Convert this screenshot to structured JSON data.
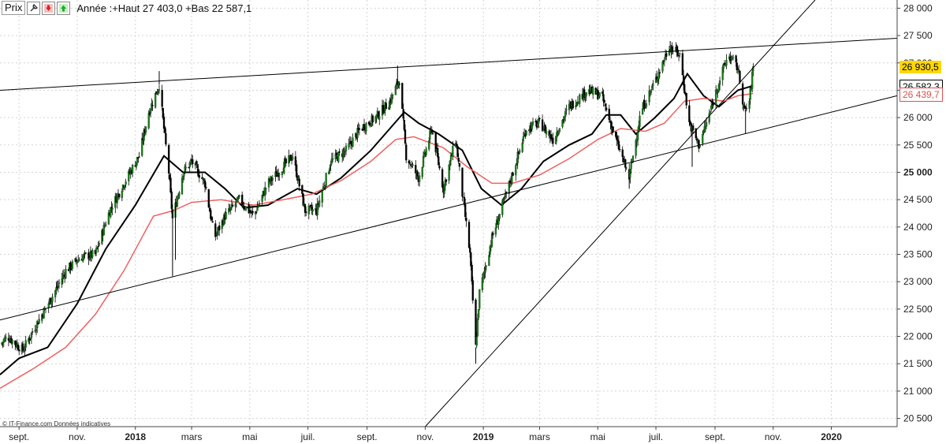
{
  "toolbar": {
    "prix_label": "Prix",
    "wrench_icon": "wrench-icon",
    "down_icon": "arrow-down-icon",
    "up_icon": "arrow-up-icon",
    "summary": "Année :+Haut 27 403,0 +Bas 22 587,1"
  },
  "credit": "© IT-Finance.com Données indicatives",
  "badges": {
    "price": {
      "label": "26 930,5",
      "value": 26930.5,
      "bg": "#ffd700"
    },
    "ma_black": {
      "label": "26 582,3",
      "value": 26582.3,
      "color": "#000000"
    },
    "ma_red": {
      "label": "26 439,7",
      "value": 26439.7,
      "color": "#e05050"
    }
  },
  "colors": {
    "up": "#1a7a1a",
    "down": "#000000",
    "ma_black": "#000000",
    "ma_red": "#f06060",
    "trend": "#000000",
    "grid": "#cccccc"
  },
  "chart_data": {
    "type": "candlestick",
    "ylim": [
      20350,
      28150
    ],
    "y_ticks": [
      {
        "v": 20500,
        "l": "20 500"
      },
      {
        "v": 21000,
        "l": "21 000"
      },
      {
        "v": 21500,
        "l": "21 500"
      },
      {
        "v": 22000,
        "l": "22 000"
      },
      {
        "v": 22500,
        "l": "22 500"
      },
      {
        "v": 23000,
        "l": "23 000"
      },
      {
        "v": 23500,
        "l": "23 500"
      },
      {
        "v": 24000,
        "l": "24 000"
      },
      {
        "v": 24500,
        "l": "24 500"
      },
      {
        "v": 25000,
        "l": "25 000",
        "bold": true
      },
      {
        "v": 25500,
        "l": "25 500"
      },
      {
        "v": 26000,
        "l": "26 000"
      },
      {
        "v": 26500,
        "l": "26 500"
      },
      {
        "v": 27000,
        "l": "27 000"
      },
      {
        "v": 27500,
        "l": "27 500"
      },
      {
        "v": 28000,
        "l": "28 000"
      }
    ],
    "x_range": [
      "2017-08-12",
      "2020-03-10"
    ],
    "x_ticks": [
      {
        "d": "2017-09-01",
        "l": "sept."
      },
      {
        "d": "2017-11-01",
        "l": "nov."
      },
      {
        "d": "2018-01-01",
        "l": "2018",
        "bold": true
      },
      {
        "d": "2018-03-01",
        "l": "mars"
      },
      {
        "d": "2018-05-01",
        "l": "mai"
      },
      {
        "d": "2018-07-01",
        "l": "juil."
      },
      {
        "d": "2018-09-01",
        "l": "sept."
      },
      {
        "d": "2018-11-01",
        "l": "nov."
      },
      {
        "d": "2019-01-01",
        "l": "2019",
        "bold": true
      },
      {
        "d": "2019-03-01",
        "l": "mars"
      },
      {
        "d": "2019-05-01",
        "l": "mai"
      },
      {
        "d": "2019-07-01",
        "l": "juil."
      },
      {
        "d": "2019-09-01",
        "l": "sept."
      },
      {
        "d": "2019-11-01",
        "l": "nov."
      },
      {
        "d": "2020-01-01",
        "l": "2020",
        "bold": true
      }
    ],
    "close_path": [
      [
        "2017-08-12",
        21850
      ],
      [
        "2017-08-20",
        22000
      ],
      [
        "2017-09-05",
        21750
      ],
      [
        "2017-09-20",
        22250
      ],
      [
        "2017-10-05",
        22700
      ],
      [
        "2017-10-20",
        23200
      ],
      [
        "2017-11-05",
        23450
      ],
      [
        "2017-11-20",
        23500
      ],
      [
        "2017-12-05",
        24300
      ],
      [
        "2017-12-20",
        24800
      ],
      [
        "2018-01-05",
        25300
      ],
      [
        "2018-01-15",
        26100
      ],
      [
        "2018-01-26",
        26600
      ],
      [
        "2018-02-05",
        25000
      ],
      [
        "2018-02-09",
        24150
      ],
      [
        "2018-02-20",
        25000
      ],
      [
        "2018-03-01",
        25200
      ],
      [
        "2018-03-15",
        24800
      ],
      [
        "2018-03-25",
        23800
      ],
      [
        "2018-04-05",
        24200
      ],
      [
        "2018-04-20",
        24500
      ],
      [
        "2018-05-05",
        24200
      ],
      [
        "2018-05-20",
        24800
      ],
      [
        "2018-06-05",
        25100
      ],
      [
        "2018-06-15",
        25300
      ],
      [
        "2018-06-28",
        24300
      ],
      [
        "2018-07-10",
        24300
      ],
      [
        "2018-07-25",
        25200
      ],
      [
        "2018-08-10",
        25400
      ],
      [
        "2018-08-25",
        25800
      ],
      [
        "2018-09-10",
        26000
      ],
      [
        "2018-09-25",
        26300
      ],
      [
        "2018-10-05",
        26700
      ],
      [
        "2018-10-12",
        25300
      ],
      [
        "2018-10-25",
        24900
      ],
      [
        "2018-11-08",
        25800
      ],
      [
        "2018-11-20",
        24700
      ],
      [
        "2018-12-03",
        25600
      ],
      [
        "2018-12-10",
        24600
      ],
      [
        "2018-12-18",
        23500
      ],
      [
        "2018-12-24",
        21800
      ],
      [
        "2018-12-28",
        22800
      ],
      [
        "2019-01-10",
        23800
      ],
      [
        "2019-01-25",
        24600
      ],
      [
        "2019-02-15",
        25800
      ],
      [
        "2019-03-01",
        25900
      ],
      [
        "2019-03-15",
        25600
      ],
      [
        "2019-04-01",
        26200
      ],
      [
        "2019-04-20",
        26500
      ],
      [
        "2019-05-05",
        26400
      ],
      [
        "2019-05-20",
        25600
      ],
      [
        "2019-06-03",
        24900
      ],
      [
        "2019-06-15",
        26100
      ],
      [
        "2019-07-01",
        26700
      ],
      [
        "2019-07-15",
        27300
      ],
      [
        "2019-07-26",
        27150
      ],
      [
        "2019-08-05",
        25900
      ],
      [
        "2019-08-15",
        25500
      ],
      [
        "2019-08-25",
        26000
      ],
      [
        "2019-09-05",
        26650
      ],
      [
        "2019-09-15",
        27150
      ],
      [
        "2019-09-25",
        26900
      ],
      [
        "2019-10-02",
        26100
      ],
      [
        "2019-10-07",
        26300
      ],
      [
        "2019-10-11",
        26930.5
      ]
    ],
    "spikes_low": [
      {
        "d": "2018-02-09",
        "v": 23100
      },
      {
        "d": "2018-02-12",
        "v": 23400
      },
      {
        "d": "2018-12-24",
        "v": 21500
      },
      {
        "d": "2019-06-03",
        "v": 24700
      },
      {
        "d": "2019-08-08",
        "v": 25100
      },
      {
        "d": "2019-10-03",
        "v": 25700
      }
    ],
    "spikes_high": [
      {
        "d": "2018-01-26",
        "v": 26850
      },
      {
        "d": "2018-10-03",
        "v": 26950
      },
      {
        "d": "2019-07-16",
        "v": 27400
      }
    ],
    "trendlines": [
      {
        "name": "upper",
        "p1": [
          "2017-08-12",
          26500
        ],
        "p2": [
          "2020-03-10",
          27450
        ]
      },
      {
        "name": "lower",
        "p1": [
          "2017-08-12",
          22300
        ],
        "p2": [
          "2020-03-10",
          26400
        ]
      },
      {
        "name": "steep",
        "p1": [
          "2018-11-01",
          20350
        ],
        "p2": [
          "2019-12-15",
          28150
        ]
      }
    ],
    "moving_averages": [
      {
        "name": "MA-black",
        "color": "#000000",
        "path": [
          [
            "2017-08-12",
            21300
          ],
          [
            "2017-09-01",
            21600
          ],
          [
            "2017-10-01",
            21800
          ],
          [
            "2017-11-01",
            22600
          ],
          [
            "2017-12-01",
            23600
          ],
          [
            "2018-01-01",
            24400
          ],
          [
            "2018-01-31",
            25300
          ],
          [
            "2018-02-20",
            25000
          ],
          [
            "2018-03-15",
            25000
          ],
          [
            "2018-04-05",
            24700
          ],
          [
            "2018-04-25",
            24350
          ],
          [
            "2018-05-20",
            24400
          ],
          [
            "2018-06-20",
            24700
          ],
          [
            "2018-07-10",
            24600
          ],
          [
            "2018-08-05",
            24900
          ],
          [
            "2018-09-05",
            25400
          ],
          [
            "2018-09-25",
            25800
          ],
          [
            "2018-10-10",
            26100
          ],
          [
            "2018-10-25",
            25900
          ],
          [
            "2018-11-15",
            25700
          ],
          [
            "2018-12-10",
            25400
          ],
          [
            "2018-12-30",
            24700
          ],
          [
            "2019-01-20",
            24400
          ],
          [
            "2019-02-10",
            24700
          ],
          [
            "2019-03-05",
            25200
          ],
          [
            "2019-04-01",
            25500
          ],
          [
            "2019-04-25",
            25700
          ],
          [
            "2019-05-10",
            26050
          ],
          [
            "2019-05-25",
            26050
          ],
          [
            "2019-06-10",
            25700
          ],
          [
            "2019-06-30",
            26000
          ],
          [
            "2019-07-20",
            26350
          ],
          [
            "2019-08-03",
            26800
          ],
          [
            "2019-08-20",
            26400
          ],
          [
            "2019-09-05",
            26200
          ],
          [
            "2019-09-25",
            26500
          ],
          [
            "2019-10-11",
            26582.3
          ]
        ]
      },
      {
        "name": "MA-red",
        "color": "#f06060",
        "path": [
          [
            "2017-08-12",
            21050
          ],
          [
            "2017-09-15",
            21400
          ],
          [
            "2017-10-20",
            21800
          ],
          [
            "2017-11-20",
            22400
          ],
          [
            "2017-12-20",
            23200
          ],
          [
            "2018-01-20",
            24200
          ],
          [
            "2018-02-10",
            24300
          ],
          [
            "2018-03-01",
            24450
          ],
          [
            "2018-04-01",
            24500
          ],
          [
            "2018-05-05",
            24400
          ],
          [
            "2018-06-05",
            24500
          ],
          [
            "2018-07-05",
            24600
          ],
          [
            "2018-08-05",
            24850
          ],
          [
            "2018-09-05",
            25200
          ],
          [
            "2018-10-01",
            25600
          ],
          [
            "2018-10-20",
            25650
          ],
          [
            "2018-11-20",
            25450
          ],
          [
            "2018-12-15",
            25100
          ],
          [
            "2019-01-10",
            24800
          ],
          [
            "2019-02-01",
            24800
          ],
          [
            "2019-03-01",
            24950
          ],
          [
            "2019-04-01",
            25250
          ],
          [
            "2019-05-01",
            25600
          ],
          [
            "2019-05-25",
            25800
          ],
          [
            "2019-06-20",
            25750
          ],
          [
            "2019-07-10",
            25900
          ],
          [
            "2019-07-31",
            26300
          ],
          [
            "2019-08-20",
            26350
          ],
          [
            "2019-09-10",
            26300
          ],
          [
            "2019-09-25",
            26400
          ],
          [
            "2019-10-11",
            26439.7
          ]
        ]
      }
    ]
  }
}
